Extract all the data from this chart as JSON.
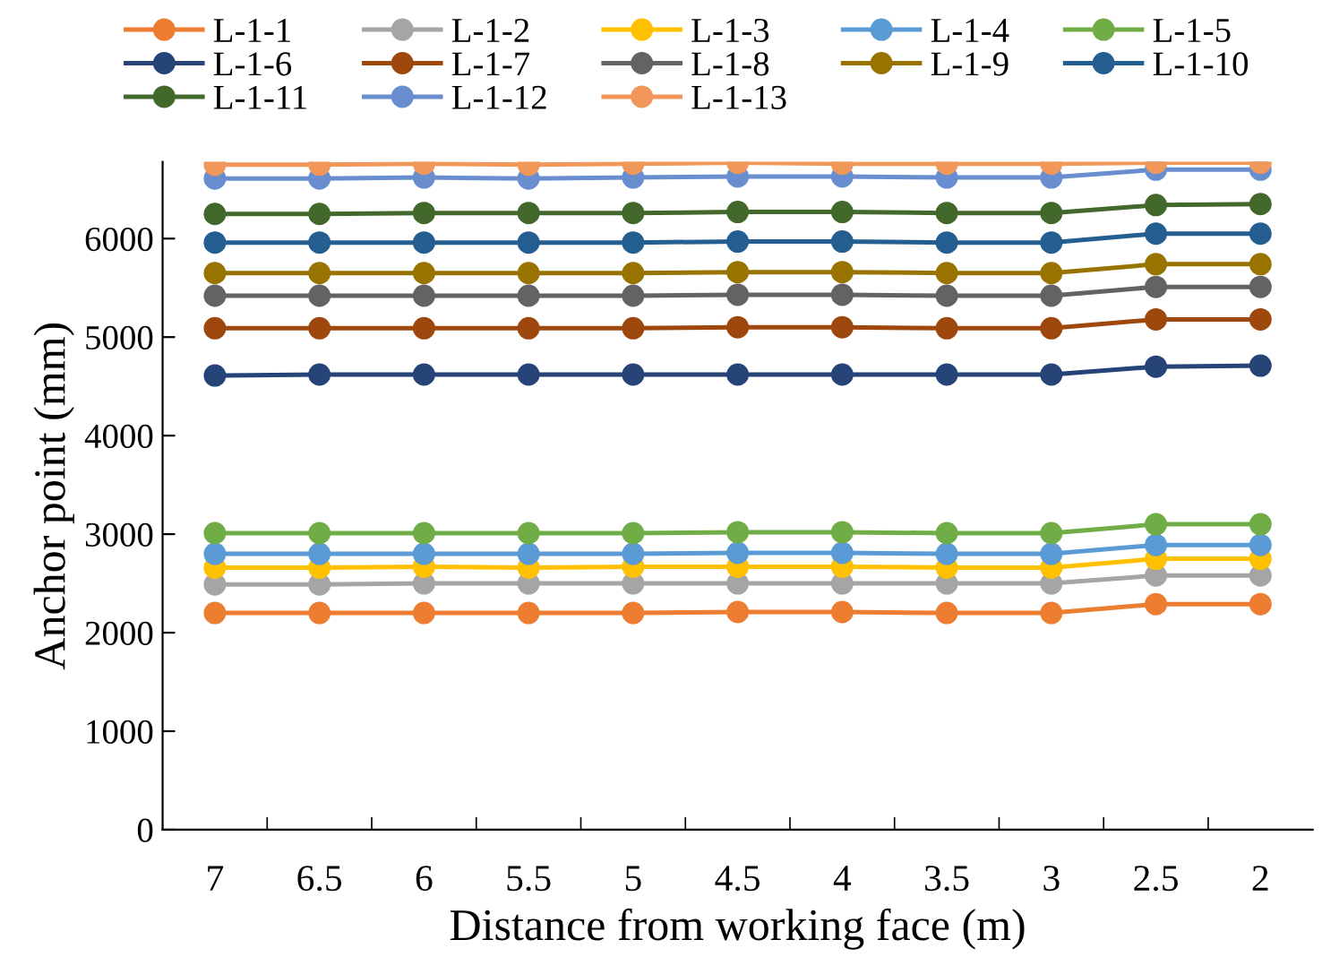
{
  "chart_data": {
    "type": "line",
    "xlabel": "Distance from working face (m)",
    "ylabel": "Anchor point (mm)",
    "categories": [
      "7",
      "6.5",
      "6",
      "5.5",
      "5",
      "4.5",
      "4",
      "3.5",
      "3",
      "2.5",
      "2"
    ],
    "ylim": [
      0,
      6780
    ],
    "yticks": [
      0,
      1000,
      2000,
      3000,
      4000,
      5000,
      6000
    ],
    "grid": false,
    "legend": "top",
    "marker": "circle",
    "line_style": "solid",
    "series": [
      {
        "name": "L-1-1",
        "color": "#ed7d31",
        "values": [
          2200,
          2200,
          2200,
          2200,
          2200,
          2210,
          2210,
          2200,
          2200,
          2290,
          2290
        ]
      },
      {
        "name": "L-1-2",
        "color": "#a5a5a5",
        "values": [
          2490,
          2490,
          2500,
          2500,
          2500,
          2500,
          2500,
          2500,
          2500,
          2580,
          2580
        ]
      },
      {
        "name": "L-1-3",
        "color": "#ffc000",
        "values": [
          2660,
          2660,
          2670,
          2660,
          2670,
          2670,
          2670,
          2660,
          2660,
          2750,
          2750
        ]
      },
      {
        "name": "L-1-4",
        "color": "#5b9bd5",
        "values": [
          2800,
          2800,
          2800,
          2800,
          2800,
          2810,
          2810,
          2800,
          2800,
          2890,
          2890
        ]
      },
      {
        "name": "L-1-5",
        "color": "#70ad47",
        "values": [
          3010,
          3010,
          3010,
          3010,
          3010,
          3020,
          3020,
          3010,
          3010,
          3100,
          3100
        ]
      },
      {
        "name": "L-1-6",
        "color": "#264478",
        "values": [
          4610,
          4620,
          4620,
          4620,
          4620,
          4620,
          4620,
          4620,
          4620,
          4700,
          4710
        ]
      },
      {
        "name": "L-1-7",
        "color": "#9e480e",
        "values": [
          5090,
          5090,
          5090,
          5090,
          5090,
          5100,
          5100,
          5090,
          5090,
          5180,
          5180
        ]
      },
      {
        "name": "L-1-8",
        "color": "#636363",
        "values": [
          5420,
          5420,
          5420,
          5420,
          5420,
          5430,
          5430,
          5420,
          5420,
          5510,
          5510
        ]
      },
      {
        "name": "L-1-9",
        "color": "#997300",
        "values": [
          5650,
          5650,
          5650,
          5650,
          5650,
          5660,
          5660,
          5650,
          5650,
          5740,
          5740
        ]
      },
      {
        "name": "L-1-10",
        "color": "#255e91",
        "values": [
          5960,
          5960,
          5960,
          5960,
          5960,
          5970,
          5970,
          5960,
          5960,
          6050,
          6050
        ]
      },
      {
        "name": "L-1-11",
        "color": "#43682b",
        "values": [
          6250,
          6250,
          6260,
          6260,
          6260,
          6270,
          6270,
          6260,
          6260,
          6340,
          6350
        ]
      },
      {
        "name": "L-1-12",
        "color": "#698ed0",
        "values": [
          6610,
          6610,
          6620,
          6610,
          6620,
          6630,
          6630,
          6620,
          6620,
          6700,
          6700
        ]
      },
      {
        "name": "L-1-13",
        "color": "#f1975a",
        "values": [
          6750,
          6750,
          6760,
          6750,
          6760,
          6770,
          6760,
          6760,
          6760,
          6770,
          6770
        ]
      }
    ]
  }
}
